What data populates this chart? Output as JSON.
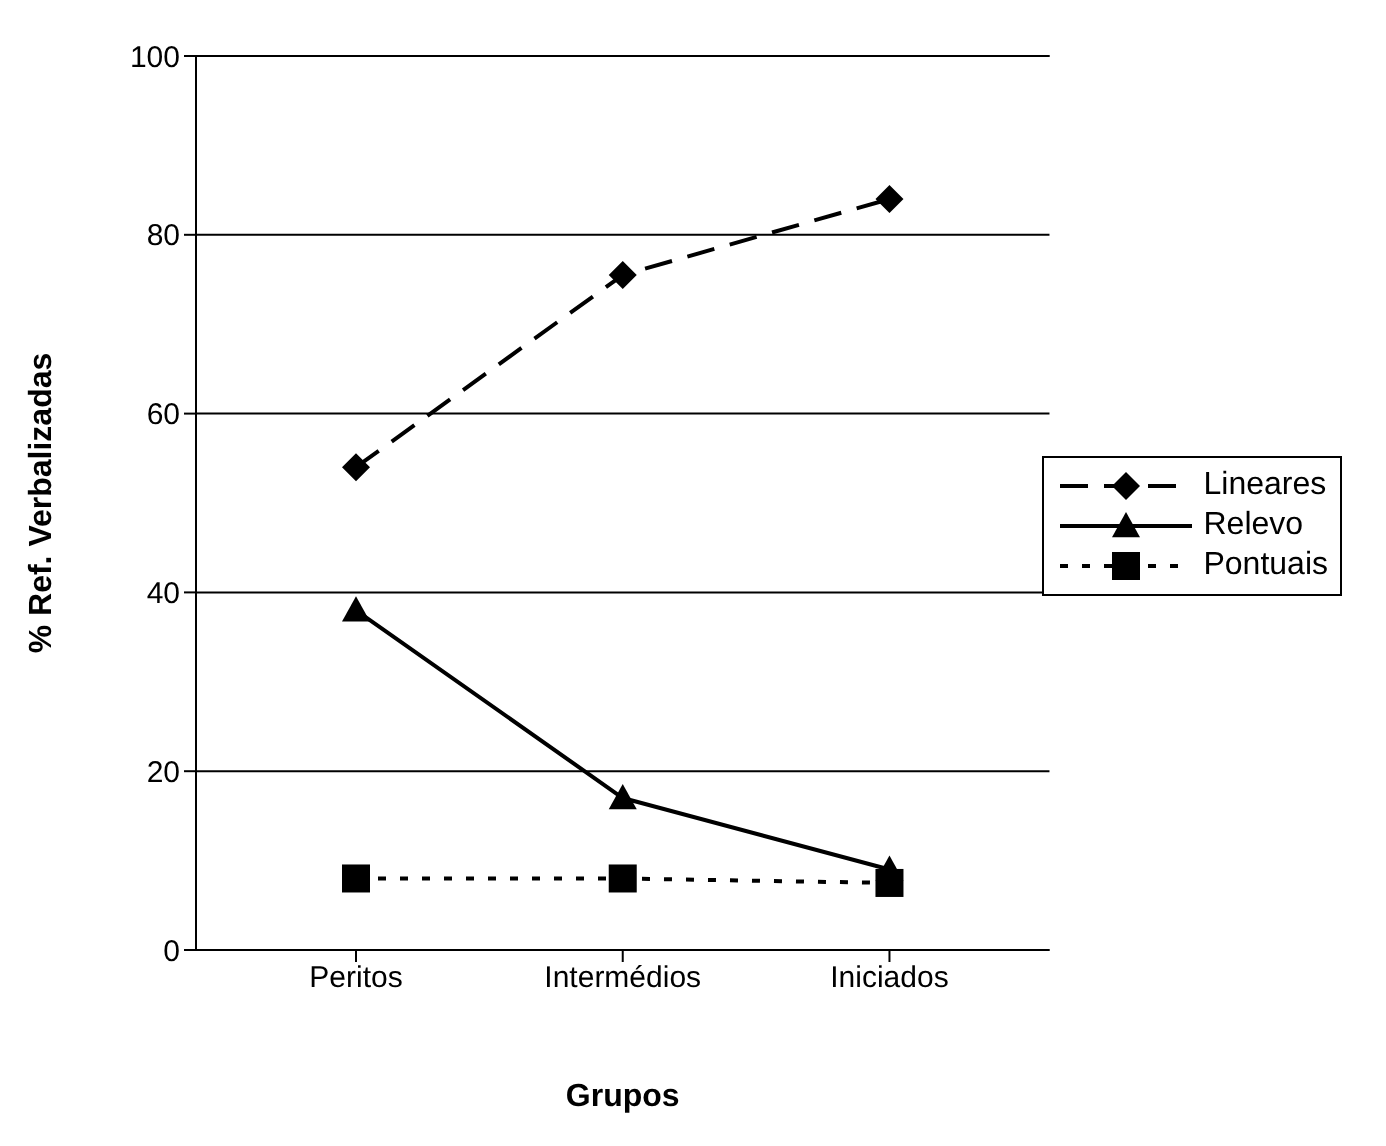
{
  "chart_data": {
    "type": "line",
    "xlabel": "Grupos",
    "ylabel": "% Ref. Verbalizadas",
    "categories": [
      "Peritos",
      "Intermédios",
      "Iniciados"
    ],
    "series": [
      {
        "name": "Lineares",
        "color": "#000000",
        "values": [
          54,
          75.5,
          84
        ],
        "marker": "diamond",
        "line_style": "dashed"
      },
      {
        "name": "Relevo",
        "color": "#000000",
        "values": [
          38,
          17,
          9
        ],
        "marker": "triangle",
        "line_style": "solid"
      },
      {
        "name": "Pontuais",
        "color": "#000000",
        "values": [
          8,
          8,
          7.5
        ],
        "marker": "square",
        "line_style": "dotted"
      }
    ],
    "ylim": [
      0,
      100
    ],
    "yticks": [
      0,
      20,
      40,
      60,
      80,
      100
    ],
    "grid": "y",
    "legend": "right"
  }
}
